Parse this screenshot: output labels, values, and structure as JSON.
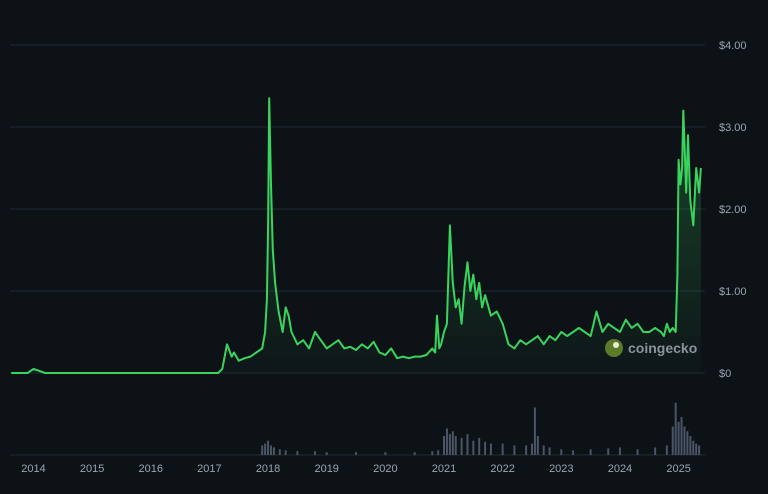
{
  "chart_data": {
    "type": "area",
    "title": "",
    "currency_axis": "right",
    "y_ticks": [
      {
        "value": 0,
        "label": "$0"
      },
      {
        "value": 1,
        "label": "$1.00"
      },
      {
        "value": 2,
        "label": "$2.00"
      },
      {
        "value": 3,
        "label": "$3.00"
      },
      {
        "value": 4,
        "label": "$4.00"
      }
    ],
    "x_ticks": [
      {
        "value": 2014.0,
        "label": "2014"
      },
      {
        "value": 2015.0,
        "label": "2015"
      },
      {
        "value": 2016.0,
        "label": "2016"
      },
      {
        "value": 2017.0,
        "label": "2017"
      },
      {
        "value": 2018.0,
        "label": "2018"
      },
      {
        "value": 2019.0,
        "label": "2019"
      },
      {
        "value": 2020.0,
        "label": "2020"
      },
      {
        "value": 2021.0,
        "label": "2021"
      },
      {
        "value": 2022.0,
        "label": "2022"
      },
      {
        "value": 2023.0,
        "label": "2023"
      },
      {
        "value": 2024.0,
        "label": "2024"
      },
      {
        "value": 2025.0,
        "label": "2025"
      }
    ],
    "xlim": [
      2013.6,
      2025.45
    ],
    "ylim": [
      0,
      4
    ],
    "grid": true,
    "colors": {
      "line": "#3ad35e",
      "volume": "#4a5566",
      "grid": "#222a33"
    },
    "series": [
      {
        "x": [
          2013.62,
          2013.9,
          2014.0,
          2014.2,
          2014.6,
          2015.0,
          2015.5,
          2016.0,
          2016.5,
          2017.0,
          2017.15,
          2017.22,
          2017.3,
          2017.38,
          2017.42,
          2017.5,
          2017.6,
          2017.7,
          2017.8,
          2017.9,
          2017.95,
          2017.98,
          2018.0,
          2018.02,
          2018.05,
          2018.08,
          2018.12,
          2018.18,
          2018.25,
          2018.3,
          2018.35,
          2018.4,
          2018.5,
          2018.6,
          2018.7,
          2018.8,
          2018.9,
          2019.0,
          2019.1,
          2019.2,
          2019.3,
          2019.4,
          2019.5,
          2019.6,
          2019.7,
          2019.8,
          2019.9,
          2020.0,
          2020.1,
          2020.2,
          2020.3,
          2020.4,
          2020.5,
          2020.6,
          2020.7,
          2020.8,
          2020.85,
          2020.88,
          2020.92,
          2020.95,
          2021.0,
          2021.05,
          2021.1,
          2021.15,
          2021.2,
          2021.25,
          2021.3,
          2021.35,
          2021.4,
          2021.45,
          2021.5,
          2021.55,
          2021.6,
          2021.65,
          2021.7,
          2021.8,
          2021.9,
          2022.0,
          2022.1,
          2022.2,
          2022.3,
          2022.4,
          2022.5,
          2022.6,
          2022.7,
          2022.8,
          2022.9,
          2023.0,
          2023.1,
          2023.2,
          2023.3,
          2023.4,
          2023.5,
          2023.55,
          2023.6,
          2023.7,
          2023.8,
          2023.9,
          2024.0,
          2024.1,
          2024.2,
          2024.3,
          2024.4,
          2024.5,
          2024.6,
          2024.7,
          2024.75,
          2024.8,
          2024.85,
          2024.9,
          2024.95,
          2024.98,
          2025.0,
          2025.03,
          2025.06,
          2025.08,
          2025.1,
          2025.13,
          2025.16,
          2025.2,
          2025.25,
          2025.3,
          2025.35,
          2025.38
        ],
        "y": [
          0.0,
          0.0,
          0.05,
          0.0,
          0.0,
          0.0,
          0.0,
          0.0,
          0.0,
          0.0,
          0.0,
          0.05,
          0.35,
          0.2,
          0.25,
          0.15,
          0.18,
          0.2,
          0.25,
          0.3,
          0.5,
          0.9,
          1.8,
          3.35,
          2.3,
          1.5,
          1.1,
          0.75,
          0.5,
          0.8,
          0.7,
          0.5,
          0.35,
          0.4,
          0.3,
          0.5,
          0.4,
          0.3,
          0.35,
          0.4,
          0.3,
          0.32,
          0.28,
          0.35,
          0.3,
          0.38,
          0.25,
          0.22,
          0.3,
          0.18,
          0.2,
          0.18,
          0.2,
          0.2,
          0.22,
          0.3,
          0.25,
          0.7,
          0.3,
          0.35,
          0.5,
          0.6,
          1.8,
          1.1,
          0.8,
          0.9,
          0.6,
          1.05,
          1.35,
          1.0,
          1.2,
          0.9,
          1.1,
          0.8,
          0.95,
          0.7,
          0.75,
          0.6,
          0.35,
          0.3,
          0.4,
          0.35,
          0.4,
          0.45,
          0.35,
          0.45,
          0.4,
          0.5,
          0.45,
          0.5,
          0.55,
          0.5,
          0.45,
          0.6,
          0.75,
          0.5,
          0.6,
          0.55,
          0.5,
          0.65,
          0.55,
          0.6,
          0.5,
          0.5,
          0.55,
          0.5,
          0.45,
          0.6,
          0.5,
          0.55,
          0.5,
          1.2,
          2.6,
          2.3,
          2.5,
          3.2,
          2.8,
          2.2,
          2.9,
          2.1,
          1.8,
          2.5,
          2.2,
          2.5
        ]
      }
    ],
    "volume": {
      "x": [
        2017.9,
        2017.95,
        2018.0,
        2018.05,
        2018.1,
        2018.2,
        2018.3,
        2018.5,
        2018.8,
        2019.0,
        2019.5,
        2020.0,
        2020.5,
        2020.8,
        2020.9,
        2021.0,
        2021.05,
        2021.1,
        2021.15,
        2021.2,
        2021.3,
        2021.4,
        2021.5,
        2021.6,
        2021.7,
        2021.8,
        2022.0,
        2022.2,
        2022.4,
        2022.5,
        2022.55,
        2022.6,
        2022.7,
        2022.8,
        2023.0,
        2023.2,
        2023.5,
        2023.8,
        2024.0,
        2024.3,
        2024.6,
        2024.8,
        2024.9,
        2024.95,
        2025.0,
        2025.05,
        2025.1,
        2025.15,
        2025.2,
        2025.25,
        2025.3,
        2025.35
      ],
      "y": [
        0.1,
        0.12,
        0.15,
        0.1,
        0.08,
        0.06,
        0.05,
        0.04,
        0.04,
        0.03,
        0.03,
        0.03,
        0.03,
        0.04,
        0.05,
        0.2,
        0.28,
        0.22,
        0.25,
        0.2,
        0.18,
        0.22,
        0.15,
        0.18,
        0.14,
        0.12,
        0.12,
        0.1,
        0.1,
        0.12,
        0.5,
        0.2,
        0.1,
        0.08,
        0.06,
        0.05,
        0.06,
        0.07,
        0.08,
        0.06,
        0.08,
        0.1,
        0.3,
        0.55,
        0.35,
        0.4,
        0.3,
        0.25,
        0.2,
        0.15,
        0.12,
        0.1
      ]
    },
    "watermark": {
      "text": "coingecko",
      "icon": "gecko-logo-icon"
    }
  }
}
